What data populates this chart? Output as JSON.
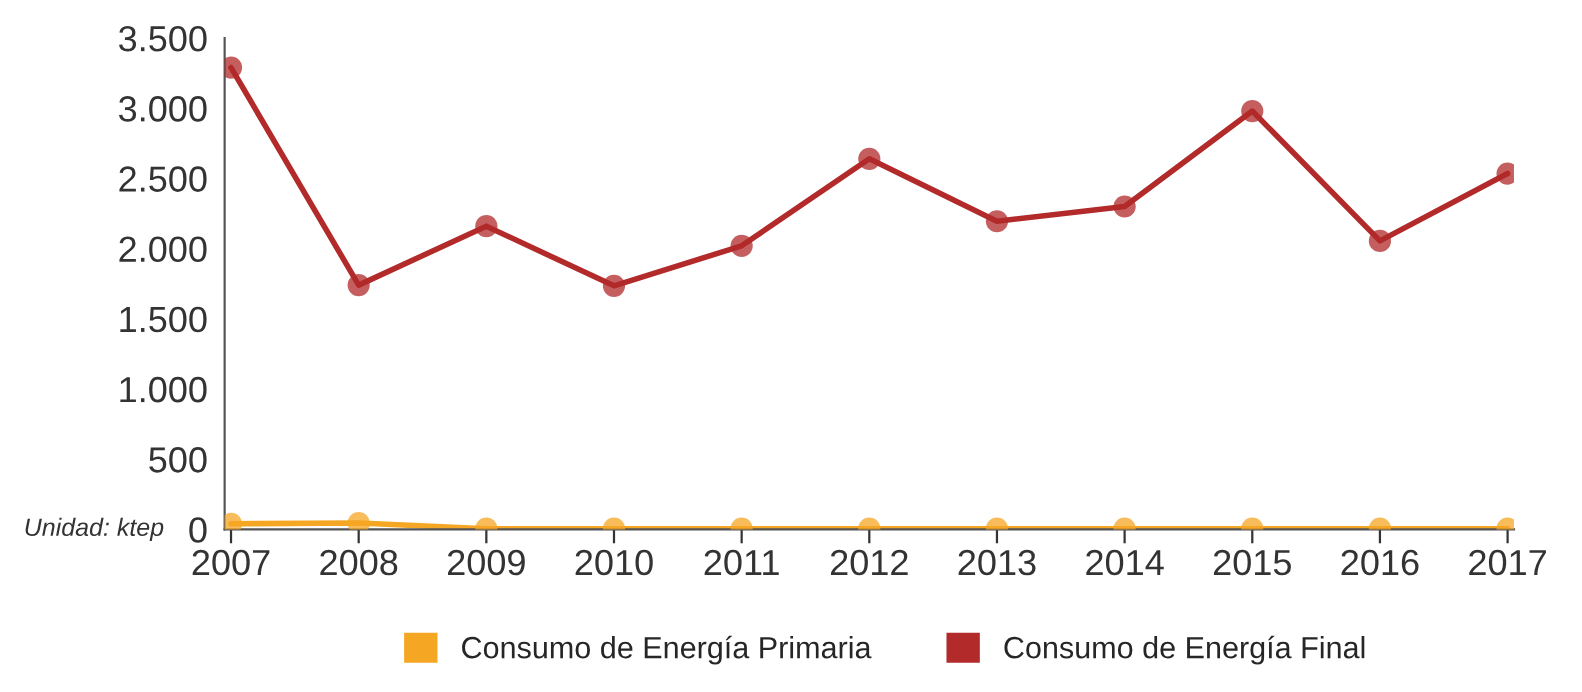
{
  "chart_data": {
    "type": "line",
    "categories": [
      "2007",
      "2008",
      "2009",
      "2010",
      "2011",
      "2012",
      "2013",
      "2014",
      "2015",
      "2016",
      "2017"
    ],
    "series": [
      {
        "name": "Consumo de Energía Primaria",
        "color": "#f5a623",
        "values": [
          40,
          45,
          5,
          5,
          5,
          5,
          5,
          5,
          5,
          5,
          5
        ]
      },
      {
        "name": "Consumo de Energía Final",
        "color": "#b22a2a",
        "values": [
          3290,
          1740,
          2160,
          1735,
          2020,
          2640,
          2195,
          2300,
          2980,
          2055,
          2535
        ]
      }
    ],
    "ylim": [
      0,
      3500
    ],
    "yticks": [
      {
        "value": 0,
        "label": "0"
      },
      {
        "value": 500,
        "label": "500"
      },
      {
        "value": 1000,
        "label": "1.000"
      },
      {
        "value": 1500,
        "label": "1.500"
      },
      {
        "value": 2000,
        "label": "2.000"
      },
      {
        "value": 2500,
        "label": "2.500"
      },
      {
        "value": 3000,
        "label": "3.000"
      },
      {
        "value": 3500,
        "label": "3.500"
      }
    ],
    "annotations": [
      "Unidad: ktep"
    ],
    "marker": "circle",
    "grid": false,
    "legend": "bottom"
  }
}
